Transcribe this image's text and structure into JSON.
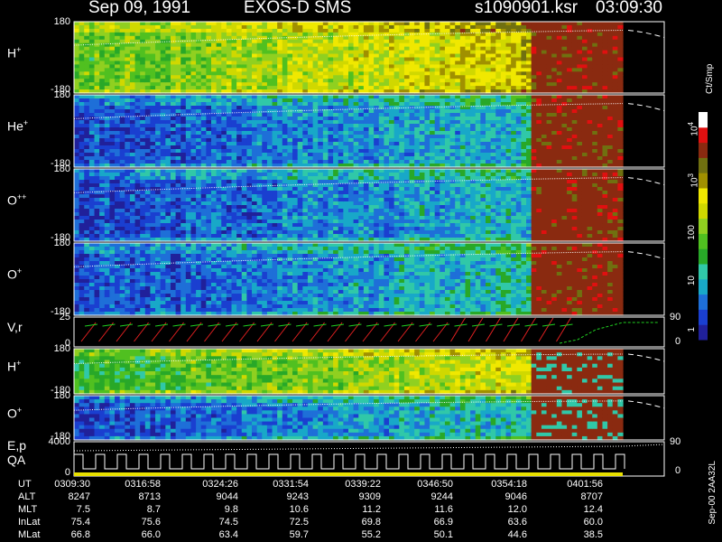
{
  "header": {
    "date": "Sep 09, 1991",
    "instrument": "EXOS-D SMS",
    "file": "s1090901.ksr",
    "time": "03:09:30"
  },
  "colors": {
    "spectrogram_scale": [
      "#20209a",
      "#1a3fd0",
      "#1e6fd8",
      "#18a8c8",
      "#30c8a8",
      "#28a828",
      "#50c020",
      "#90d020",
      "#d0d800",
      "#f0e800",
      "#a09000",
      "#707010",
      "#8a2a10",
      "#e01010",
      "#ffffff"
    ],
    "line_red": "#e02020",
    "line_green": "#20d020",
    "trace": "#ffffff"
  },
  "chart_data": {
    "type": "heatmap",
    "title": "",
    "panels": [
      {
        "name": "H+",
        "label_base": "H",
        "label_sup": "+",
        "ylim": [
          -180,
          180
        ],
        "yticks": [
          "180",
          "-180"
        ]
      },
      {
        "name": "He+",
        "label_base": "He",
        "label_sup": "+",
        "ylim": [
          -180,
          180
        ],
        "yticks": [
          "180",
          "-180"
        ]
      },
      {
        "name": "O++",
        "label_base": "O",
        "label_sup": "++",
        "ylim": [
          -180,
          180
        ],
        "yticks": [
          "180",
          "-180"
        ]
      },
      {
        "name": "O+",
        "label_base": "O",
        "label_sup": "+",
        "ylim": [
          -180,
          180
        ],
        "yticks": [
          "180",
          "-180"
        ]
      },
      {
        "name": "V,r",
        "label_base": "V,r",
        "label_sup": "",
        "ylim": [
          0,
          25
        ],
        "yticks": [
          "25",
          "0"
        ],
        "right_ticks": [
          "90",
          "0"
        ],
        "type": "line"
      },
      {
        "name": "H+",
        "label_base": "H",
        "label_sup": "+",
        "ylim": [
          -180,
          180
        ],
        "yticks": [
          "180",
          "-180"
        ]
      },
      {
        "name": "O+",
        "label_base": "O",
        "label_sup": "+",
        "ylim": [
          -180,
          180
        ],
        "yticks": [
          "180",
          "-180"
        ]
      },
      {
        "name": "E,p QA",
        "label_base": "E,p",
        "label_line2": "QA",
        "label_sup": "",
        "ylim": [
          0,
          4000
        ],
        "yticks": [
          "4000",
          "0"
        ],
        "right_ticks": [
          "90",
          "0"
        ],
        "type": "line"
      }
    ],
    "colorbar": {
      "label": "Ct/Smp",
      "ticks": [
        {
          "value": 1,
          "label": "1"
        },
        {
          "value": 10,
          "label": "10"
        },
        {
          "value": 100,
          "label": "100"
        },
        {
          "value": 1000,
          "label_base": "10",
          "label_sup": "3"
        },
        {
          "value": 10000,
          "label_base": "10",
          "label_sup": "4"
        }
      ],
      "scale": "log"
    },
    "ephemeris": {
      "rows": [
        {
          "label": "UT",
          "values": [
            "0309:30",
            "0316:58",
            "0324:26",
            "0331:54",
            "0339:22",
            "0346:50",
            "0354:18",
            "0401:56"
          ]
        },
        {
          "label": "ALT",
          "values": [
            "8247",
            "8713",
            "9044",
            "9243",
            "9309",
            "9244",
            "9046",
            "8707"
          ]
        },
        {
          "label": "MLT",
          "values": [
            "7.5",
            "8.7",
            "9.8",
            "10.6",
            "11.2",
            "11.6",
            "12.0",
            "12.4"
          ]
        },
        {
          "label": "InLat",
          "values": [
            "75.4",
            "75.6",
            "74.5",
            "72.5",
            "69.8",
            "66.9",
            "63.6",
            "60.0"
          ]
        },
        {
          "label": "MLat",
          "values": [
            "66.8",
            "66.0",
            "63.4",
            "59.7",
            "55.2",
            "50.1",
            "44.6",
            "38.5"
          ]
        }
      ]
    }
  },
  "footer": {
    "id": "Sep-00 2AA32L"
  }
}
